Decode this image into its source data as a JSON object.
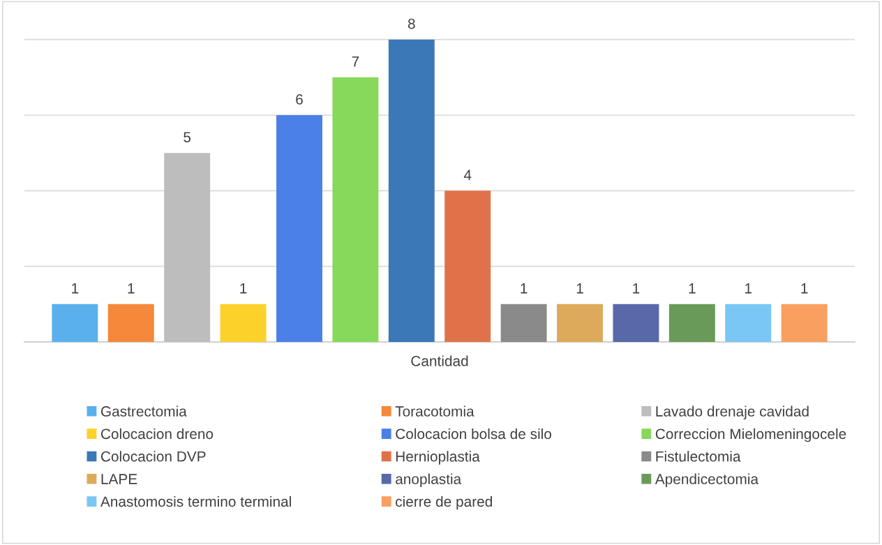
{
  "chart_data": {
    "type": "bar",
    "xlabel": "Cantidad",
    "stacked": true,
    "categories": [
      null,
      null,
      null,
      null,
      null,
      null,
      null,
      null,
      null,
      null,
      null,
      null,
      null,
      null
    ],
    "series": [
      {
        "name": "Gastrectomia",
        "color": "#5ab0ec",
        "values": [
          1,
          null,
          null,
          null,
          null,
          null,
          null,
          null,
          null,
          null,
          null,
          null,
          null,
          null
        ]
      },
      {
        "name": "Toracotomia",
        "color": "#f5883a",
        "values": [
          null,
          1,
          null,
          null,
          null,
          null,
          null,
          null,
          null,
          null,
          null,
          null,
          null,
          null
        ]
      },
      {
        "name": "Lavado drenaje cavidad",
        "color": "#bdbdbd",
        "values": [
          null,
          null,
          5,
          null,
          null,
          null,
          null,
          null,
          null,
          null,
          null,
          null,
          null,
          null
        ]
      },
      {
        "name": "Colocacion dreno",
        "color": "#fcd12a",
        "values": [
          null,
          null,
          null,
          1,
          null,
          null,
          null,
          null,
          null,
          null,
          null,
          null,
          null,
          null
        ]
      },
      {
        "name": "Colocacion bolsa de silo",
        "color": "#4a80e8",
        "values": [
          null,
          null,
          null,
          null,
          6,
          null,
          null,
          null,
          null,
          null,
          null,
          null,
          null,
          null
        ]
      },
      {
        "name": "Correccion Mielomeningocele",
        "color": "#86d95a",
        "values": [
          null,
          null,
          null,
          null,
          null,
          7,
          null,
          null,
          null,
          null,
          null,
          null,
          null,
          null
        ]
      },
      {
        "name": "Colocacion DVP",
        "color": "#3a78b8",
        "values": [
          null,
          null,
          null,
          null,
          null,
          null,
          8,
          null,
          null,
          null,
          null,
          null,
          null,
          null
        ]
      },
      {
        "name": "Hernioplastia",
        "color": "#e0724a",
        "values": [
          null,
          null,
          null,
          null,
          null,
          null,
          null,
          4,
          null,
          null,
          null,
          null,
          null,
          null
        ]
      },
      {
        "name": "Fistulectomia",
        "color": "#8a8a8a",
        "values": [
          null,
          null,
          null,
          null,
          null,
          null,
          null,
          null,
          1,
          null,
          null,
          null,
          null,
          null
        ]
      },
      {
        "name": "LAPE",
        "color": "#dcaa5a",
        "values": [
          null,
          null,
          null,
          null,
          null,
          null,
          null,
          null,
          null,
          1,
          null,
          null,
          null,
          null
        ]
      },
      {
        "name": "anoplastia",
        "color": "#5868a8",
        "values": [
          null,
          null,
          null,
          null,
          null,
          null,
          null,
          null,
          null,
          null,
          1,
          null,
          null,
          null
        ]
      },
      {
        "name": "Apendicectomia",
        "color": "#6a9a5a",
        "values": [
          null,
          null,
          null,
          null,
          null,
          null,
          null,
          null,
          null,
          null,
          null,
          1,
          null,
          null
        ]
      },
      {
        "name": "Anastomosis termino terminal",
        "color": "#7ac6f5",
        "values": [
          null,
          null,
          null,
          null,
          null,
          null,
          null,
          null,
          null,
          null,
          null,
          null,
          1,
          null
        ]
      },
      {
        "name": "cierre de pared",
        "color": "#f9a060",
        "values": [
          null,
          null,
          null,
          null,
          null,
          null,
          null,
          null,
          null,
          null,
          null,
          null,
          null,
          1
        ]
      }
    ],
    "tick_labels": false,
    "grid": "y",
    "legend": "bottom",
    "data_labels": true
  }
}
